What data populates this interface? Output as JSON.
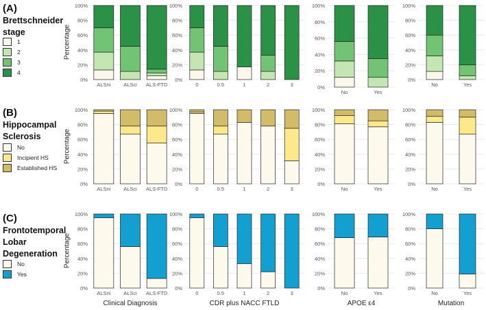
{
  "colors": {
    "stage_1": "#fbf7ea",
    "stage_2": "#c3e6b2",
    "stage_3": "#72c373",
    "stage_4": "#2a9146",
    "hs_no": "#fdf9ec",
    "hs_incipient": "#fde98c",
    "hs_established": "#d2bc6a",
    "ftld_no": "#fdf9ec",
    "ftld_yes": "#139fd0"
  },
  "rows": [
    {
      "letter": "(A)",
      "heading_lines": [
        "Brettschneider",
        "stage"
      ],
      "legend": [
        {
          "label": "1",
          "color": "#fbf7ea"
        },
        {
          "label": "2",
          "color": "#c3e6b2"
        },
        {
          "label": "3",
          "color": "#72c373"
        },
        {
          "label": "4",
          "color": "#2a9146"
        }
      ]
    },
    {
      "letter": "(B)",
      "heading_lines": [
        "Hippocampal",
        "Sclerosis"
      ],
      "legend": [
        {
          "label": "No",
          "color": "#fdf9ec"
        },
        {
          "label": "Incipient HS",
          "color": "#fde98c"
        },
        {
          "label": "Established HS",
          "color": "#d2bc6a"
        }
      ]
    },
    {
      "letter": "(C)",
      "heading_lines": [
        "Frontotemporal",
        "Lobar",
        "Degeneration"
      ],
      "legend": [
        {
          "label": "No",
          "color": "#fdf9ec"
        },
        {
          "label": "Yes",
          "color": "#139fd0"
        }
      ]
    }
  ],
  "ylabel": "Percentage",
  "x_titles": [
    "Clinical Diagnosis",
    "CDR plus NACC FTLD",
    "APOE ε4",
    "Mutation"
  ],
  "chart_data": [
    {
      "type": "bar",
      "stacked": true,
      "row": 0,
      "col": 0,
      "ylim": [
        0,
        100
      ],
      "yticks": [
        "0%",
        "20%",
        "40%",
        "60%",
        "80%",
        "100%"
      ],
      "categories": [
        "ALSni",
        "ALSci",
        "ALS-FTD"
      ],
      "series": [
        {
          "name": "1",
          "values": [
            13,
            0,
            5
          ]
        },
        {
          "name": "2",
          "values": [
            24,
            11,
            4
          ]
        },
        {
          "name": "3",
          "values": [
            33,
            34,
            5
          ]
        },
        {
          "name": "4",
          "values": [
            30,
            55,
            86
          ]
        }
      ]
    },
    {
      "type": "bar",
      "stacked": true,
      "row": 0,
      "col": 1,
      "ylim": [
        0,
        100
      ],
      "yticks": [
        "0%",
        "20%",
        "40%",
        "60%",
        "80%",
        "100%"
      ],
      "categories": [
        "0",
        "0.5",
        "1",
        "2",
        "3"
      ],
      "series": [
        {
          "name": "1",
          "values": [
            13,
            0,
            17,
            0,
            0
          ]
        },
        {
          "name": "2",
          "values": [
            24,
            11,
            0,
            11,
            0
          ]
        },
        {
          "name": "3",
          "values": [
            33,
            34,
            0,
            22,
            0
          ]
        },
        {
          "name": "4",
          "values": [
            30,
            55,
            83,
            67,
            100
          ]
        }
      ]
    },
    {
      "type": "bar",
      "stacked": true,
      "row": 0,
      "col": 2,
      "ylim": [
        0,
        100
      ],
      "yticks": [
        "0%",
        "20%",
        "40%",
        "60%",
        "80%",
        "100%"
      ],
      "categories": [
        "No",
        "Yes"
      ],
      "series": [
        {
          "name": "1",
          "values": [
            12,
            0
          ]
        },
        {
          "name": "2",
          "values": [
            20,
            12
          ]
        },
        {
          "name": "3",
          "values": [
            24,
            23
          ]
        },
        {
          "name": "4",
          "values": [
            44,
            65
          ]
        }
      ]
    },
    {
      "type": "bar",
      "stacked": true,
      "row": 0,
      "col": 3,
      "ylim": [
        0,
        100
      ],
      "yticks": [
        "0%",
        "20%",
        "40%",
        "60%",
        "80%",
        "100%"
      ],
      "categories": [
        "No",
        "Yes"
      ],
      "series": [
        {
          "name": "1",
          "values": [
            11,
            0
          ]
        },
        {
          "name": "2",
          "values": [
            21,
            5
          ]
        },
        {
          "name": "3",
          "values": [
            28,
            15
          ]
        },
        {
          "name": "4",
          "values": [
            40,
            80
          ]
        }
      ]
    },
    {
      "type": "bar",
      "stacked": true,
      "row": 1,
      "col": 0,
      "ylim": [
        0,
        100
      ],
      "yticks": [
        "0%",
        "20%",
        "40%",
        "60%",
        "80%",
        "100%"
      ],
      "categories": [
        "ALSni",
        "ALSci",
        "ALS-FTD"
      ],
      "series": [
        {
          "name": "No",
          "values": [
            95,
            67,
            55
          ]
        },
        {
          "name": "Incipient HS",
          "values": [
            3,
            11,
            23
          ]
        },
        {
          "name": "Established HS",
          "values": [
            2,
            22,
            22
          ]
        }
      ]
    },
    {
      "type": "bar",
      "stacked": true,
      "row": 1,
      "col": 1,
      "ylim": [
        0,
        100
      ],
      "yticks": [
        "0%",
        "20%",
        "40%",
        "60%",
        "80%",
        "100%"
      ],
      "categories": [
        "0",
        "0.5",
        "1",
        "2",
        "3"
      ],
      "series": [
        {
          "name": "No",
          "values": [
            95,
            67,
            83,
            78,
            31
          ]
        },
        {
          "name": "Incipient HS",
          "values": [
            2,
            11,
            0,
            0,
            44
          ]
        },
        {
          "name": "Established HS",
          "values": [
            3,
            22,
            17,
            22,
            25
          ]
        }
      ]
    },
    {
      "type": "bar",
      "stacked": true,
      "row": 1,
      "col": 2,
      "ylim": [
        0,
        100
      ],
      "yticks": [
        "0%",
        "20%",
        "40%",
        "60%",
        "80%",
        "100%"
      ],
      "categories": [
        "No",
        "Yes"
      ],
      "series": [
        {
          "name": "No",
          "values": [
            81,
            77
          ]
        },
        {
          "name": "Incipient HS",
          "values": [
            11,
            8
          ]
        },
        {
          "name": "Established HS",
          "values": [
            8,
            15
          ]
        }
      ]
    },
    {
      "type": "bar",
      "stacked": true,
      "row": 1,
      "col": 3,
      "ylim": [
        0,
        100
      ],
      "yticks": [
        "0%",
        "20%",
        "40%",
        "60%",
        "80%",
        "100%"
      ],
      "categories": [
        "No",
        "Yes"
      ],
      "series": [
        {
          "name": "No",
          "values": [
            83,
            67
          ]
        },
        {
          "name": "Incipient HS",
          "values": [
            8,
            23
          ]
        },
        {
          "name": "Established HS",
          "values": [
            9,
            10
          ]
        }
      ]
    },
    {
      "type": "bar",
      "stacked": true,
      "row": 2,
      "col": 0,
      "ylim": [
        0,
        100
      ],
      "yticks": [
        "0%",
        "20%",
        "40%",
        "60%",
        "80%",
        "100%"
      ],
      "categories": [
        "ALSni",
        "ALSci",
        "ALS-FTD"
      ],
      "series": [
        {
          "name": "No",
          "values": [
            95,
            56,
            13
          ]
        },
        {
          "name": "Yes",
          "values": [
            5,
            44,
            87
          ]
        }
      ]
    },
    {
      "type": "bar",
      "stacked": true,
      "row": 2,
      "col": 1,
      "ylim": [
        0,
        100
      ],
      "yticks": [
        "0%",
        "20%",
        "40%",
        "60%",
        "80%",
        "100%"
      ],
      "categories": [
        "0",
        "0.5",
        "1",
        "2",
        "3"
      ],
      "series": [
        {
          "name": "No",
          "values": [
            95,
            56,
            33,
            22,
            0
          ]
        },
        {
          "name": "Yes",
          "values": [
            5,
            44,
            67,
            78,
            100
          ]
        }
      ]
    },
    {
      "type": "bar",
      "stacked": true,
      "row": 2,
      "col": 2,
      "ylim": [
        0,
        100
      ],
      "yticks": [
        "0%",
        "20%",
        "40%",
        "60%",
        "80%",
        "100%"
      ],
      "categories": [
        "No",
        "Yes"
      ],
      "series": [
        {
          "name": "No",
          "values": [
            68,
            69
          ]
        },
        {
          "name": "Yes",
          "values": [
            32,
            31
          ]
        }
      ]
    },
    {
      "type": "bar",
      "stacked": true,
      "row": 2,
      "col": 3,
      "ylim": [
        0,
        100
      ],
      "yticks": [
        "0%",
        "20%",
        "40%",
        "60%",
        "80%",
        "100%"
      ],
      "categories": [
        "No",
        "Yes"
      ],
      "series": [
        {
          "name": "No",
          "values": [
            80,
            19
          ]
        },
        {
          "name": "Yes",
          "values": [
            20,
            81
          ]
        }
      ]
    }
  ]
}
